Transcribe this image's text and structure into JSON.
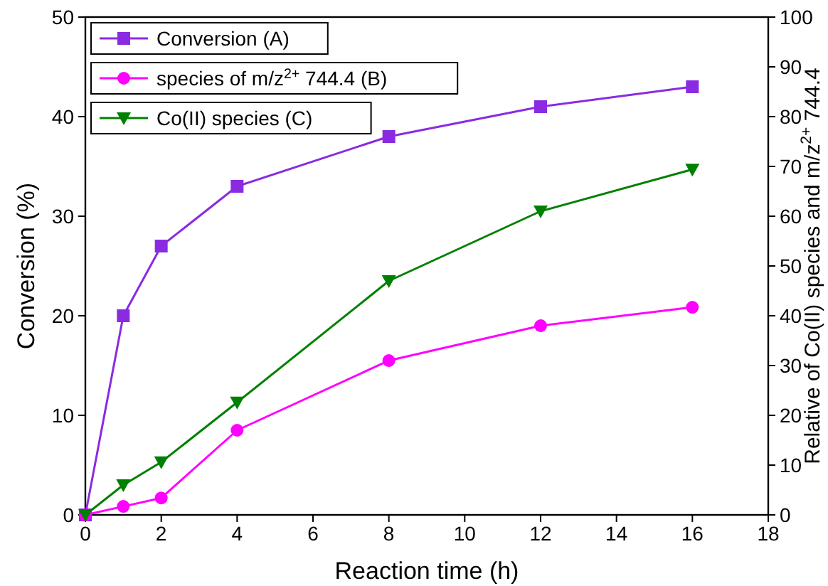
{
  "chart_data": {
    "type": "line",
    "xlabel": "Reaction time (h)",
    "ylabel": "Conversion (%)",
    "y2label": "Relative of Co(II) species and m/z$^{2+}$ 744.4",
    "x": [
      0,
      1,
      2,
      4,
      8,
      12,
      16
    ],
    "series": [
      {
        "name": "Conversion (A)",
        "color": "#8a2be2",
        "marker": "square",
        "values": [
          0,
          20,
          27,
          33,
          38,
          41,
          43
        ]
      },
      {
        "name": "species of m/z$^{2+}$ 744.4 (B)",
        "color": "#ff00ff",
        "marker": "circle",
        "axis": "y2",
        "values": [
          0,
          1.7,
          3.4,
          17,
          31,
          38,
          41.7
        ]
      },
      {
        "name": "Co(II) species (C)",
        "color": "#008000",
        "marker": "triangle",
        "axis": "y2",
        "values": [
          0,
          6,
          10.6,
          22.6,
          47,
          61,
          69.4
        ]
      }
    ],
    "xlim": [
      0,
      18
    ],
    "xticks": [
      0,
      2,
      4,
      6,
      8,
      10,
      12,
      14,
      16,
      18
    ],
    "ylim": [
      0,
      50
    ],
    "yticks": [
      0,
      10,
      20,
      30,
      40,
      50
    ],
    "y2lim": [
      0,
      100
    ],
    "y2ticks": [
      0,
      10,
      20,
      30,
      40,
      50,
      60,
      70,
      80,
      90,
      100
    ],
    "legend": "top left",
    "grid": false
  }
}
